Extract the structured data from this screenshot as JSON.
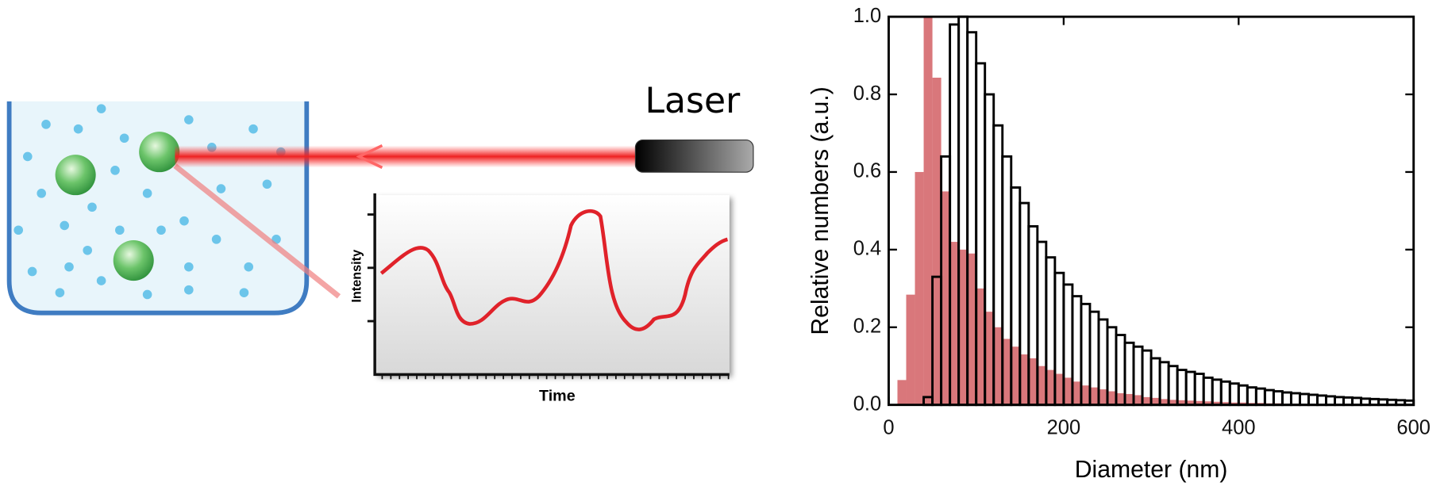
{
  "diagram": {
    "laser": "Laser",
    "inset": {
      "y_label": "Intensity",
      "x_label": "Time"
    }
  },
  "chart_data": {
    "type": "histogram",
    "x_label": "Diameter (nm)",
    "y_label": "Relative numbers (a.u.)",
    "bins": [
      0,
      10,
      20,
      30,
      40,
      50,
      60,
      70,
      80,
      90,
      100,
      110,
      120,
      130,
      140,
      150,
      160,
      170,
      180,
      190,
      200,
      210,
      220,
      230,
      240,
      250,
      260,
      270,
      280,
      290,
      300,
      310,
      320,
      330,
      340,
      350,
      360,
      370,
      380,
      390,
      400,
      410,
      420,
      430,
      440,
      450,
      460,
      470,
      480,
      490,
      500,
      510,
      520,
      530,
      540,
      550,
      560,
      570,
      580,
      590,
      600
    ],
    "series": [
      {
        "color": "#d9777b",
        "filled": true,
        "values": [
          0,
          0.064,
          0.284,
          0.6,
          1.0,
          0.843,
          0.55,
          0.42,
          0.4,
          0.39,
          0.3,
          0.24,
          0.2,
          0.17,
          0.15,
          0.13,
          0.12,
          0.1,
          0.09,
          0.08,
          0.07,
          0.06,
          0.05,
          0.045,
          0.04,
          0.035,
          0.03,
          0.028,
          0.025,
          0.02,
          0.018,
          0.015,
          0.013,
          0.012,
          0.011,
          0.01,
          0.009,
          0.008,
          0.007,
          0.006,
          0.006,
          0.005,
          0.005,
          0.004,
          0.004,
          0.003,
          0.003,
          0,
          0,
          0,
          0,
          0,
          0,
          0,
          0,
          0,
          0,
          0,
          0,
          0
        ]
      },
      {
        "color": "#000000",
        "filled": false,
        "values": [
          0,
          0,
          0,
          0,
          0.02,
          0.33,
          0.64,
          0.98,
          1.0,
          0.96,
          0.88,
          0.8,
          0.72,
          0.64,
          0.56,
          0.52,
          0.46,
          0.42,
          0.38,
          0.34,
          0.31,
          0.28,
          0.26,
          0.24,
          0.22,
          0.2,
          0.18,
          0.16,
          0.15,
          0.14,
          0.12,
          0.11,
          0.1,
          0.09,
          0.085,
          0.08,
          0.07,
          0.065,
          0.06,
          0.055,
          0.05,
          0.045,
          0.042,
          0.038,
          0.035,
          0.032,
          0.03,
          0.028,
          0.026,
          0.024,
          0.022,
          0.02,
          0.019,
          0.018,
          0.016,
          0.015,
          0.014,
          0.013,
          0.012,
          0.011
        ]
      }
    ],
    "xlim": [
      0,
      600
    ],
    "xticks": [
      0,
      200,
      400,
      600
    ],
    "ylim": [
      0,
      1
    ],
    "yticks": [
      {
        "value": 0,
        "label": "0.0"
      },
      0.2,
      0.4,
      0.6,
      0.8,
      {
        "value": 1,
        "label": "1.0"
      }
    ]
  }
}
